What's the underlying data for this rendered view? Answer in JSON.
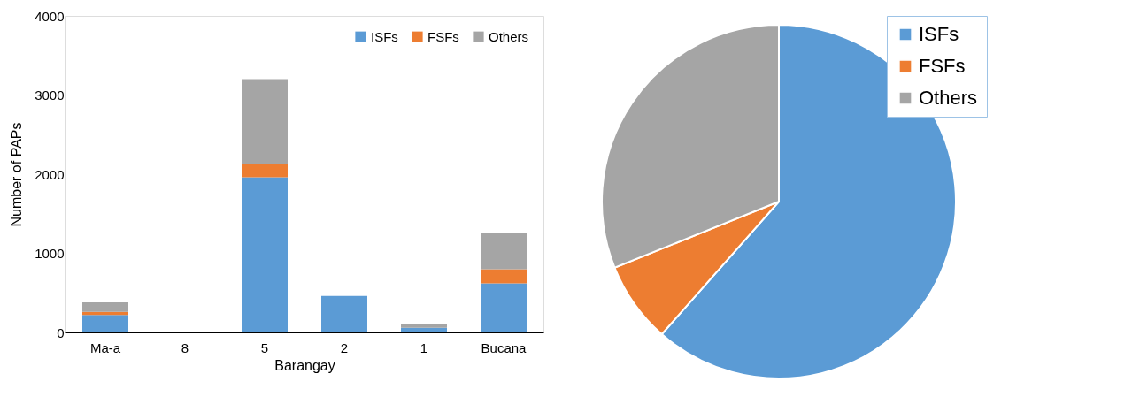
{
  "chart_data": [
    {
      "type": "bar",
      "stacked": true,
      "xlabel": "Barangay",
      "ylabel": "Number of PAPs",
      "categories": [
        "Ma-a",
        "8",
        "5",
        "2",
        "1",
        "Bucana"
      ],
      "series": [
        {
          "name": "ISFs",
          "color": "#5b9bd5",
          "values": [
            220,
            0,
            1960,
            460,
            60,
            620
          ]
        },
        {
          "name": "FSFs",
          "color": "#ed7d31",
          "values": [
            40,
            0,
            170,
            0,
            0,
            180
          ]
        },
        {
          "name": "Others",
          "color": "#a5a5a5",
          "values": [
            120,
            0,
            1070,
            0,
            40,
            460
          ]
        }
      ],
      "ylim": [
        0,
        4000
      ],
      "yticks": [
        0,
        1000,
        2000,
        3000,
        4000
      ],
      "grid": false,
      "legend": "top right"
    },
    {
      "type": "pie",
      "categories": [
        "ISFs",
        "FSFs",
        "Others"
      ],
      "values": [
        61.5,
        7.4,
        31.1
      ],
      "colors": [
        "#5b9bd5",
        "#ed7d31",
        "#a5a5a5"
      ],
      "legend": "top right"
    }
  ]
}
